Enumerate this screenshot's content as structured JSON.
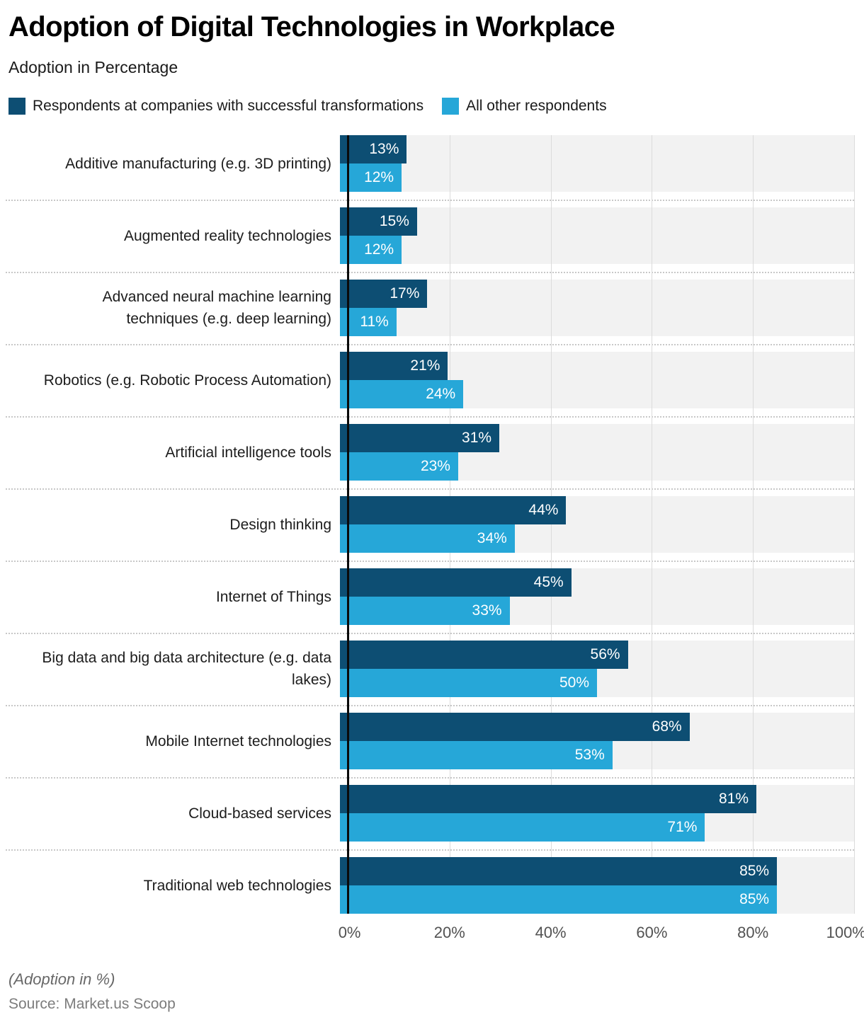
{
  "header": {
    "title": "Adoption of Digital Technologies in Workplace",
    "subtitle": "Adoption in Percentage"
  },
  "legend": {
    "items": [
      {
        "label": "Respondents at companies with successful transformations",
        "color": "#0d4e73"
      },
      {
        "label": "All other respondents",
        "color": "#26a7d8"
      }
    ]
  },
  "chart_data": {
    "type": "bar",
    "orientation": "horizontal",
    "title": "Adoption of Digital Technologies in Workplace",
    "subtitle": "Adoption in Percentage",
    "categories": [
      "Additive manufacturing (e.g. 3D printing)",
      "Augmented reality technologies",
      "Advanced neural machine learning\ntechniques (e.g. deep learning)",
      "Robotics (e.g. Robotic Process Automation)",
      "Artificial intelligence tools",
      "Design thinking",
      "Internet of Things",
      "Big data and big data architecture (e.g. data\nlakes)",
      "Mobile Internet technologies",
      "Cloud-based services",
      "Traditional web technologies"
    ],
    "series": [
      {
        "name": "Respondents at companies with successful transformations",
        "color": "#0d4e73",
        "values": [
          13,
          15,
          17,
          21,
          31,
          44,
          45,
          56,
          68,
          81,
          85
        ]
      },
      {
        "name": "All other respondents",
        "color": "#26a7d8",
        "values": [
          12,
          12,
          11,
          24,
          23,
          34,
          33,
          50,
          53,
          71,
          85
        ]
      }
    ],
    "value_suffix": "%",
    "xlabel": "",
    "ylabel": "",
    "xlim": [
      0,
      100
    ],
    "x_ticks": [
      "0%",
      "20%",
      "40%",
      "60%",
      "80%",
      "100%"
    ],
    "grid": true,
    "legend_position": "top",
    "row_band_color": "#f2f2f2"
  },
  "footer": {
    "note": "(Adoption in %)",
    "source": "Source: Market.us Scoop"
  }
}
